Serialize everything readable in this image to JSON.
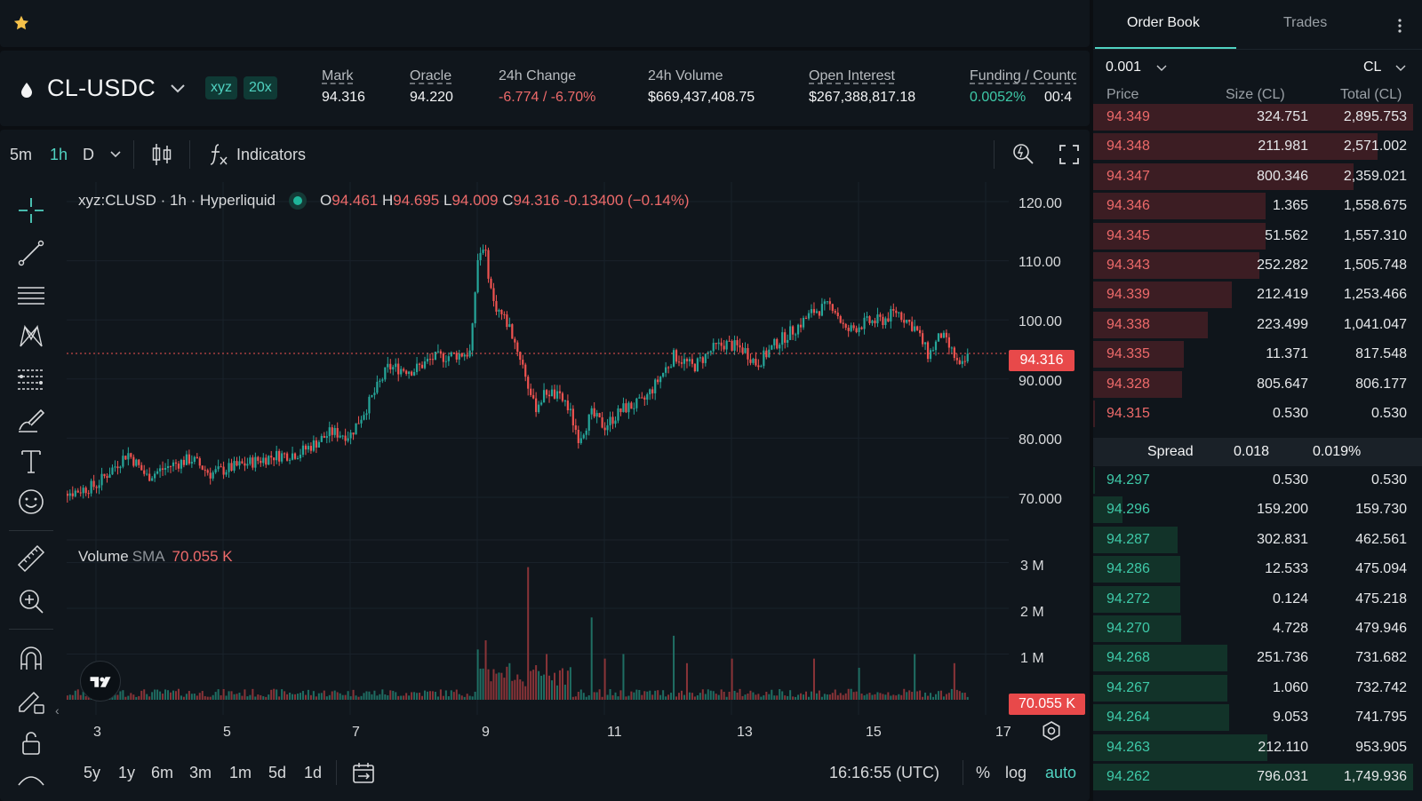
{
  "market": {
    "pair": "CL-USDC",
    "badge_dex": "xyz",
    "badge_leverage": "20x",
    "stats": [
      {
        "label": "Mark",
        "value": "94.316"
      },
      {
        "label": "Oracle",
        "value": "94.220"
      },
      {
        "label": "24h Change",
        "value": "-6.774 / -6.70%"
      },
      {
        "label": "24h Volume",
        "value": "$669,437,408.75"
      },
      {
        "label": "Open Interest",
        "value": "$267,388,817.18"
      },
      {
        "label": "Funding / Countdown",
        "value": "0.0052%",
        "value2": "00:4"
      }
    ]
  },
  "toolbar": {
    "timeframes": [
      "5m",
      "1h",
      "D"
    ],
    "active_timeframe": "1h",
    "indicators_label": "Indicators"
  },
  "chart": {
    "legend_symbol": "xyz:CLUSD · 1h · Hyperliquid",
    "ohlc": {
      "o": "94.461",
      "h": "94.695",
      "l": "94.009",
      "c": "94.316",
      "change": "-0.13400 (−0.14%)"
    },
    "volume_label": "Volume",
    "volume_sma_label": "SMA",
    "volume_sma_value": "70.055 K",
    "price_axis": [
      "120.00",
      "110.00",
      "100.00",
      "90.000",
      "80.000",
      "70.000"
    ],
    "volume_axis": [
      "3 M",
      "2 M",
      "1 M"
    ],
    "last_price_tag": "94.316",
    "volume_tag": "70.055 K",
    "date_axis": [
      "3",
      "5",
      "7",
      "9",
      "11",
      "13",
      "15",
      "17"
    ],
    "ranges": [
      "5y",
      "1y",
      "6m",
      "3m",
      "1m",
      "5d",
      "1d"
    ],
    "time_readout": "16:16:55 (UTC)",
    "percent_label": "%",
    "log_label": "log",
    "auto_label": "auto",
    "colors": {
      "up": "#26a69a",
      "down": "#ef5350",
      "accent": "#50d2c1"
    }
  },
  "chart_data": {
    "type": "candlestick",
    "x_axis": "day of month (1h candles)",
    "ylim": [
      65,
      123
    ],
    "x_range": [
      2.3,
      17
    ],
    "anchors": [
      [
        2.3,
        72.5
      ],
      [
        2.6,
        70.8
      ],
      [
        3.0,
        72.0
      ],
      [
        3.5,
        77.5
      ],
      [
        3.8,
        73.5
      ],
      [
        4.2,
        75.5
      ],
      [
        4.5,
        76.5
      ],
      [
        4.8,
        74.0
      ],
      [
        5.3,
        75.5
      ],
      [
        5.8,
        77.0
      ],
      [
        6.2,
        77.5
      ],
      [
        6.5,
        79.5
      ],
      [
        6.7,
        81.0
      ],
      [
        7.0,
        80.5
      ],
      [
        7.3,
        86.0
      ],
      [
        7.6,
        92.0
      ],
      [
        8.0,
        91.5
      ],
      [
        8.3,
        93.5
      ],
      [
        8.6,
        94.0
      ],
      [
        8.9,
        94.5
      ],
      [
        9.0,
        110.0
      ],
      [
        9.1,
        113.0
      ],
      [
        9.25,
        103.0
      ],
      [
        9.5,
        99.0
      ],
      [
        9.7,
        93.0
      ],
      [
        9.9,
        85.0
      ],
      [
        10.1,
        88.0
      ],
      [
        10.4,
        86.0
      ],
      [
        10.6,
        80.0
      ],
      [
        10.8,
        84.0
      ],
      [
        11.0,
        82.0
      ],
      [
        11.3,
        85.0
      ],
      [
        11.6,
        86.0
      ],
      [
        11.8,
        89.0
      ],
      [
        12.1,
        94.0
      ],
      [
        12.4,
        92.0
      ],
      [
        12.7,
        95.0
      ],
      [
        12.9,
        96.0
      ],
      [
        13.2,
        95.0
      ],
      [
        13.4,
        92.5
      ],
      [
        13.7,
        96.0
      ],
      [
        14.0,
        98.5
      ],
      [
        14.3,
        101.5
      ],
      [
        14.6,
        102.5
      ],
      [
        14.8,
        98.0
      ],
      [
        15.1,
        99.5
      ],
      [
        15.4,
        100.0
      ],
      [
        15.6,
        101.5
      ],
      [
        15.9,
        98.5
      ],
      [
        16.1,
        94.0
      ],
      [
        16.3,
        97.5
      ],
      [
        16.5,
        94.0
      ],
      [
        16.6,
        91.5
      ],
      [
        16.75,
        94.316
      ]
    ],
    "volume_spikes": [
      [
        9.0,
        1.1
      ],
      [
        9.15,
        1.3
      ],
      [
        9.8,
        2.9
      ],
      [
        10.1,
        1.0
      ],
      [
        10.8,
        1.8
      ],
      [
        11.0,
        0.9
      ],
      [
        11.3,
        1.0
      ],
      [
        12.1,
        1.4
      ],
      [
        12.3,
        0.8
      ],
      [
        13.0,
        0.9
      ],
      [
        14.3,
        0.9
      ],
      [
        15.0,
        0.7
      ],
      [
        15.9,
        1.0
      ],
      [
        16.5,
        0.8
      ]
    ]
  },
  "orderbook": {
    "tab_active": "Order Book",
    "tab_other": "Trades",
    "tick_size": "0.001",
    "unit": "CL",
    "headers": [
      "Price",
      "Size (CL)",
      "Total (CL)"
    ],
    "asks": [
      {
        "price": "94.349",
        "size": "324.751",
        "total": "2,895.753"
      },
      {
        "price": "94.348",
        "size": "211.981",
        "total": "2,571.002"
      },
      {
        "price": "94.347",
        "size": "800.346",
        "total": "2,359.021"
      },
      {
        "price": "94.346",
        "size": "1.365",
        "total": "1,558.675"
      },
      {
        "price": "94.345",
        "size": "51.562",
        "total": "1,557.310"
      },
      {
        "price": "94.343",
        "size": "252.282",
        "total": "1,505.748"
      },
      {
        "price": "94.339",
        "size": "212.419",
        "total": "1,253.466"
      },
      {
        "price": "94.338",
        "size": "223.499",
        "total": "1,041.047"
      },
      {
        "price": "94.335",
        "size": "11.371",
        "total": "817.548"
      },
      {
        "price": "94.328",
        "size": "805.647",
        "total": "806.177"
      },
      {
        "price": "94.315",
        "size": "0.530",
        "total": "0.530"
      }
    ],
    "spread": {
      "label": "Spread",
      "value": "0.018",
      "percent": "0.019%"
    },
    "bids": [
      {
        "price": "94.297",
        "size": "0.530",
        "total": "0.530"
      },
      {
        "price": "94.296",
        "size": "159.200",
        "total": "159.730"
      },
      {
        "price": "94.287",
        "size": "302.831",
        "total": "462.561"
      },
      {
        "price": "94.286",
        "size": "12.533",
        "total": "475.094"
      },
      {
        "price": "94.272",
        "size": "0.124",
        "total": "475.218"
      },
      {
        "price": "94.270",
        "size": "4.728",
        "total": "479.946"
      },
      {
        "price": "94.268",
        "size": "251.736",
        "total": "731.682"
      },
      {
        "price": "94.267",
        "size": "1.060",
        "total": "732.742"
      },
      {
        "price": "94.264",
        "size": "9.053",
        "total": "741.795"
      },
      {
        "price": "94.263",
        "size": "212.110",
        "total": "953.905"
      },
      {
        "price": "94.262",
        "size": "796.031",
        "total": "1,749.936"
      }
    ]
  }
}
